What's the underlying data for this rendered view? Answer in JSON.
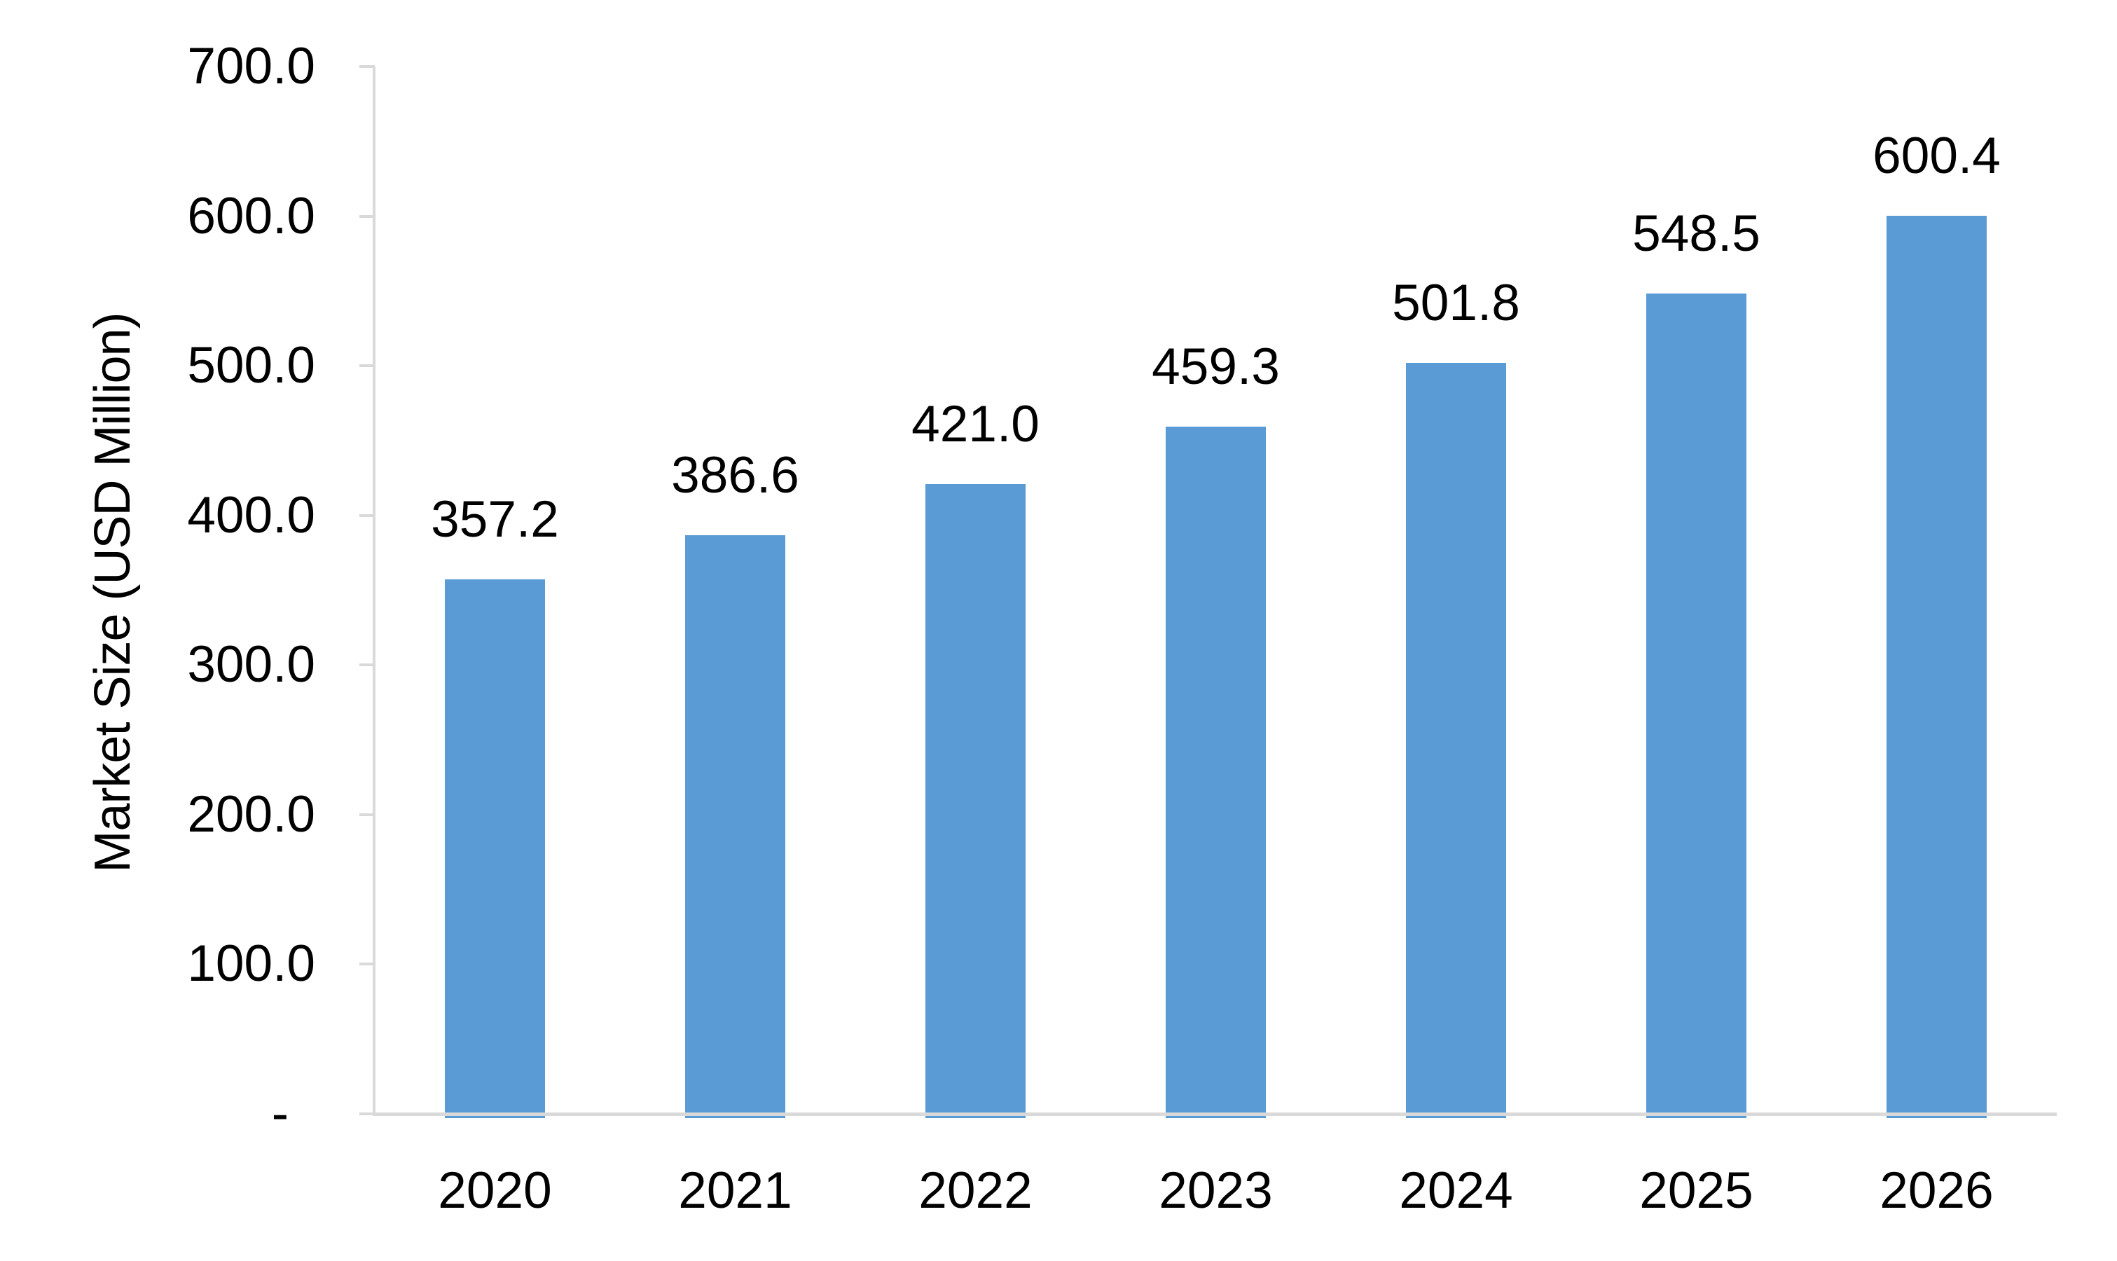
{
  "chart_data": {
    "type": "bar",
    "title": "",
    "categories": [
      "2020",
      "2021",
      "2022",
      "2023",
      "2024",
      "2025",
      "2026"
    ],
    "values": [
      357.2,
      386.6,
      421.0,
      459.3,
      501.8,
      548.5,
      600.4
    ],
    "value_labels": [
      "357.2",
      "386.6",
      "421.0",
      "459.3",
      "501.8",
      "548.5",
      "600.4"
    ],
    "xlabel": "",
    "ylabel": "Market Size (USD Million)",
    "ylim": [
      0,
      700
    ],
    "ytick_step": 100,
    "ytick_labels": [
      "700.0",
      "600.0",
      "500.0",
      "400.0",
      "300.0",
      "200.0",
      "100.0",
      "-"
    ],
    "grid": false,
    "legend": false,
    "bar_color": "#5B9BD5",
    "axis_color": "#D9D9D9",
    "text_color": "#000000",
    "background_color": "#FFFFFF"
  }
}
